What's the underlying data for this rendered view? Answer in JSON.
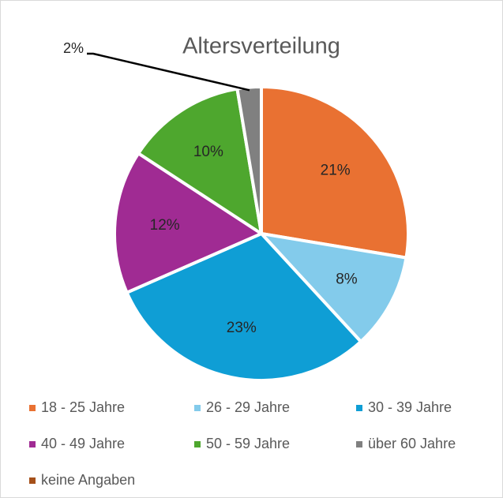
{
  "chart_data": {
    "type": "pie",
    "title": "Altersverteilung",
    "categories": [
      "18 - 25 Jahre",
      "26 - 29 Jahre",
      "30 - 39 Jahre",
      "40 - 49 Jahre",
      "50 - 59 Jahre",
      "über 60 Jahre",
      "keine Angaben"
    ],
    "values": [
      21,
      8,
      23,
      12,
      10,
      2,
      0
    ],
    "value_labels": [
      "21%",
      "8%",
      "23%",
      "12%",
      "10%",
      "2%",
      null
    ],
    "colors": [
      "#e97132",
      "#83cbeb",
      "#0f9ed5",
      "#a02b93",
      "#4ea72e",
      "#808080",
      "#a5501a"
    ],
    "legend": "bottom"
  }
}
